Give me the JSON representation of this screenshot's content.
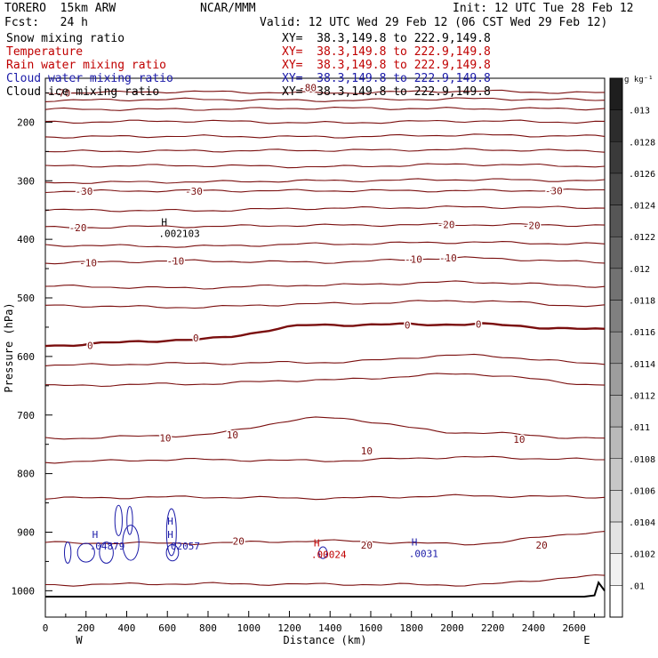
{
  "header": {
    "model": "TORERO  15km ARW",
    "center": "NCAR/MMM",
    "init": "Init: 12 UTC Tue 28 Feb 12",
    "fcst": "Fcst:   24 h",
    "valid": "Valid: 12 UTC Wed 29 Feb 12 (06 CST Wed 29 Feb 12)"
  },
  "fields": [
    {
      "label": "Snow mixing ratio",
      "xy": "XY=  38.3,149.8 to 222.9,149.8",
      "color": "#000000"
    },
    {
      "label": "Temperature",
      "xy": "XY=  38.3,149.8 to 222.9,149.8",
      "color": "#c00000"
    },
    {
      "label": "Rain water mixing ratio",
      "xy": "XY=  38.3,149.8 to 222.9,149.8",
      "color": "#c00000"
    },
    {
      "label": "Cloud water mixing ratio",
      "xy": "XY=  38.3,149.8 to 222.9,149.8",
      "color": "#1a1aa8"
    },
    {
      "label": "Cloud ice mixing ratio",
      "xy": "XY=  38.3,149.8 to 222.9,149.8",
      "color": "#000000"
    }
  ],
  "chart_data": {
    "type": "contour",
    "xlabel": "Distance (km)",
    "ylabel": "Pressure (hPa)",
    "x_ticks": [
      0,
      200,
      400,
      600,
      800,
      1000,
      1200,
      1400,
      1600,
      1800,
      2000,
      2200,
      2400,
      2600
    ],
    "y_ticks": [
      200,
      300,
      400,
      500,
      600,
      700,
      800,
      900,
      1000
    ],
    "xlim": [
      0,
      2750
    ],
    "ylim": [
      1045,
      125
    ],
    "y_scale": "linear, pressure decreasing upward",
    "endpoints": {
      "left": "W",
      "right": "E"
    },
    "colorbar": {
      "unit": "g kg⁻¹",
      "ticks": [
        ".013",
        ".0128",
        ".0126",
        ".0124",
        ".0122",
        ".012",
        ".0118",
        ".0116",
        ".0114",
        ".0112",
        ".011",
        ".0108",
        ".0106",
        ".0104",
        ".0102",
        ".01"
      ]
    },
    "temperature_isotherms": [
      {
        "p": [
          150,
          148,
          150,
          147,
          150
        ],
        "labels": [
          {
            "text": "-70",
            "x": 80,
            "p": 150
          },
          {
            "text": "-80",
            "x": 1290,
            "p": 141
          }
        ]
      },
      {
        "p": [
          163,
          161,
          163,
          160,
          162
        ]
      },
      {
        "p": [
          178,
          178,
          176,
          177,
          177
        ]
      },
      {
        "p": [
          200,
          198,
          201,
          198,
          200
        ]
      },
      {
        "p": [
          225,
          224,
          225,
          222,
          224
        ]
      },
      {
        "p": [
          250,
          249,
          248,
          247,
          249
        ]
      },
      {
        "p": [
          275,
          274,
          276,
          272,
          275
        ]
      },
      {
        "p": [
          303,
          302,
          300,
          298,
          300
        ]
      },
      {
        "p": [
          318,
          317,
          317,
          317,
          316
        ],
        "labels": [
          {
            "text": "-30",
            "x": 190,
            "p": 318
          },
          {
            "text": "-30",
            "x": 730,
            "p": 318
          },
          {
            "text": "-30",
            "x": 2500,
            "p": 317
          }
        ]
      },
      {
        "p": [
          350,
          351,
          347,
          345,
          346
        ]
      },
      {
        "p": [
          380,
          378,
          376,
          375,
          376
        ],
        "labels": [
          {
            "text": "-20",
            "x": 160,
            "p": 380
          },
          {
            "text": "-20",
            "x": 1970,
            "p": 375
          },
          {
            "text": "-20",
            "x": 2390,
            "p": 376
          }
        ]
      },
      {
        "p": [
          410,
          412,
          408,
          405,
          408
        ]
      },
      {
        "p": [
          440,
          437,
          439,
          432,
          439
        ],
        "labels": [
          {
            "text": "-10",
            "x": 210,
            "p": 440
          },
          {
            "text": "-10",
            "x": 640,
            "p": 437
          },
          {
            "text": "-10",
            "x": 1810,
            "p": 434
          },
          {
            "text": "-10",
            "x": 1980,
            "p": 432
          }
        ]
      },
      {
        "p": [
          480,
          483,
          478,
          473,
          480
        ]
      },
      {
        "p": [
          513,
          516,
          510,
          505,
          514
        ]
      },
      {
        "p": [
          581,
          572,
          546,
          545,
          554
        ],
        "labels": [
          {
            "text": "0",
            "x": 220,
            "p": 581
          },
          {
            "text": "0",
            "x": 740,
            "p": 568
          },
          {
            "text": "0",
            "x": 1780,
            "p": 546
          },
          {
            "text": "0",
            "x": 2130,
            "p": 545
          }
        ],
        "thick": true
      },
      {
        "p": [
          615,
          612,
          610,
          598,
          612
        ]
      },
      {
        "p": [
          650,
          647,
          640,
          630,
          648
        ]
      },
      {
        "p": [
          740,
          735,
          705,
          730,
          740
        ],
        "labels": [
          {
            "text": "10",
            "x": 590,
            "p": 739
          },
          {
            "text": "10",
            "x": 920,
            "p": 734
          },
          {
            "text": "10",
            "x": 1580,
            "p": 761
          },
          {
            "text": "10",
            "x": 2330,
            "p": 741
          }
        ]
      },
      {
        "p": [
          780,
          776,
          778,
          772,
          776
        ]
      },
      {
        "p": [
          842,
          840,
          842,
          838,
          840
        ]
      },
      {
        "p": [
          918,
          919,
          915,
          920,
          900
        ],
        "labels": [
          {
            "text": "20",
            "x": 950,
            "p": 915
          },
          {
            "text": "20",
            "x": 1580,
            "p": 922
          },
          {
            "text": "20",
            "x": 2440,
            "p": 922
          }
        ]
      },
      {
        "p": [
          990,
          988,
          989,
          990,
          975
        ]
      }
    ],
    "maxima_marks": [
      {
        "mark": "H",
        "x": 570,
        "p": 376,
        "value": ".002103",
        "color": "#000000"
      },
      {
        "mark": "H",
        "x": 230,
        "p": 910,
        "value": ".04879",
        "color": "#1a1aa8"
      },
      {
        "mark": "H",
        "x": 600,
        "p": 910,
        "value": ".02057",
        "color": "#1a1aa8"
      },
      {
        "mark": "H",
        "x": 600,
        "p": 887,
        "value": "",
        "color": "#1a1aa8"
      },
      {
        "mark": "H",
        "x": 1320,
        "p": 924,
        "value": ".00024",
        "color": "#c00000"
      },
      {
        "mark": "H",
        "x": 1800,
        "p": 923,
        "value": ".0031",
        "color": "#1a1aa8"
      }
    ],
    "terrain_p": 1010
  }
}
